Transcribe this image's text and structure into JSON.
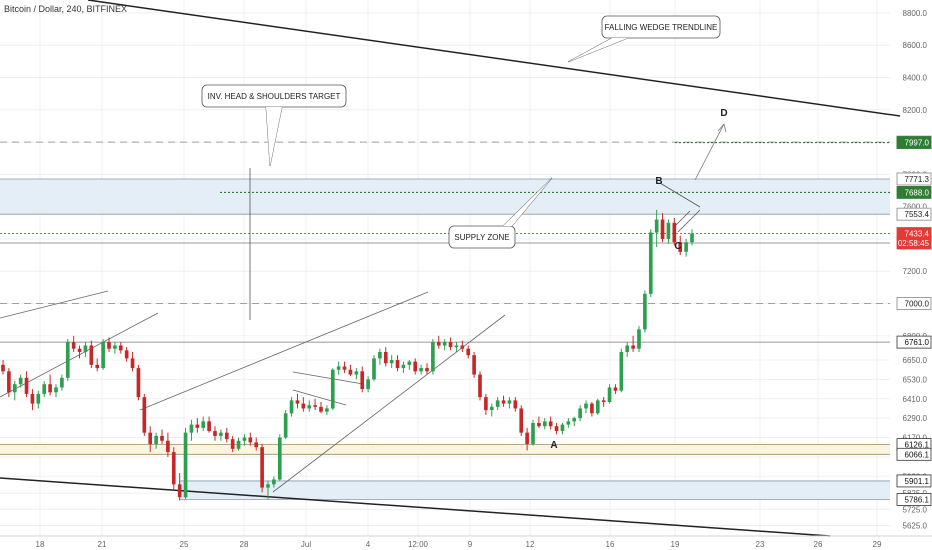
{
  "header": {
    "title": "Bitcoin / Dollar, 240, BITFINEX"
  },
  "colors": {
    "up": "#2e9e4f",
    "down": "#c62828",
    "grid": "#edf0f3",
    "axis_text": "#666666",
    "zone_fill": "#e4eef7",
    "zone_line": "#8a9aa8",
    "target_green": "#2e7d32",
    "current_red": "#e53935",
    "sand_fill": "#fbf4e2",
    "sand_line": "#a08a5a",
    "dark_badge": "#333333"
  },
  "chart_data": {
    "type": "candlestick",
    "y_axis": {
      "min": 5560,
      "max": 8880,
      "ticks": [
        "8800.0",
        "8600.0",
        "8400.0",
        "8200.0",
        "8000.0",
        "7800.0",
        "7600.0",
        "7400.0",
        "7200.0",
        "7000.0",
        "6800.0",
        "6650.0",
        "6530.0",
        "6410.0",
        "6290.0",
        "6170.0",
        "6050.0",
        "5930.0",
        "5825.0",
        "5725.0",
        "5625.0"
      ]
    },
    "x_axis": {
      "labels": [
        "18",
        "21",
        "25",
        "28",
        "Jul",
        "4",
        "12:00",
        "9",
        "12",
        "16",
        "19",
        "23",
        "26",
        "29"
      ]
    },
    "price_badges": [
      {
        "label": "8000.0",
        "value": 8000,
        "style": "light"
      },
      {
        "label": "7997.0",
        "value": 7997,
        "style": "green"
      },
      {
        "label": "7771.3",
        "value": 7771.3,
        "style": "light"
      },
      {
        "label": "7688.0",
        "value": 7688,
        "style": "green"
      },
      {
        "label": "7553.4",
        "value": 7553.4,
        "style": "light"
      },
      {
        "label": "7433.4",
        "value": 7433.4,
        "style": "red"
      },
      {
        "label": "02:58:45",
        "value": 7375,
        "style": "red"
      },
      {
        "label": "7000.0",
        "value": 7000,
        "style": "light"
      },
      {
        "label": "6761.0",
        "value": 6761,
        "style": "dark"
      },
      {
        "label": "6126.1",
        "value": 6126.1,
        "style": "dark"
      },
      {
        "label": "6066.1",
        "value": 6066.1,
        "style": "dark"
      },
      {
        "label": "5901.1",
        "value": 5901.1,
        "style": "dark"
      },
      {
        "label": "5786.1",
        "value": 5786.1,
        "style": "dark"
      }
    ],
    "callouts": [
      {
        "text": "FALLING WEDGE TRENDLINE"
      },
      {
        "text": "INV. HEAD & SHOULDERS TARGET"
      },
      {
        "text": "SUPPLY ZONE"
      }
    ],
    "point_labels": [
      "A",
      "B",
      "C",
      "D"
    ],
    "candles": [
      [
        6620,
        6650,
        6560,
        6580
      ],
      [
        6580,
        6600,
        6420,
        6450
      ],
      [
        6450,
        6520,
        6400,
        6500
      ],
      [
        6500,
        6560,
        6480,
        6540
      ],
      [
        6540,
        6580,
        6420,
        6440
      ],
      [
        6440,
        6470,
        6340,
        6380
      ],
      [
        6380,
        6460,
        6350,
        6440
      ],
      [
        6440,
        6520,
        6420,
        6500
      ],
      [
        6500,
        6560,
        6430,
        6450
      ],
      [
        6450,
        6500,
        6420,
        6480
      ],
      [
        6480,
        6560,
        6460,
        6540
      ],
      [
        6540,
        6780,
        6520,
        6760
      ],
      [
        6760,
        6800,
        6700,
        6720
      ],
      [
        6720,
        6740,
        6660,
        6700
      ],
      [
        6700,
        6760,
        6670,
        6740
      ],
      [
        6740,
        6770,
        6600,
        6620
      ],
      [
        6620,
        6660,
        6580,
        6600
      ],
      [
        6600,
        6780,
        6590,
        6760
      ],
      [
        6760,
        6790,
        6700,
        6720
      ],
      [
        6720,
        6760,
        6690,
        6740
      ],
      [
        6740,
        6760,
        6690,
        6710
      ],
      [
        6710,
        6730,
        6640,
        6660
      ],
      [
        6660,
        6700,
        6580,
        6600
      ],
      [
        6600,
        6620,
        6400,
        6420
      ],
      [
        6420,
        6440,
        6180,
        6200
      ],
      [
        6200,
        6240,
        6080,
        6130
      ],
      [
        6130,
        6200,
        6100,
        6180
      ],
      [
        6180,
        6220,
        6130,
        6150
      ],
      [
        6150,
        6200,
        6050,
        6080
      ],
      [
        6080,
        6110,
        5840,
        5880
      ],
      [
        5880,
        5950,
        5780,
        5800
      ],
      [
        5800,
        6230,
        5790,
        6200
      ],
      [
        6200,
        6280,
        6150,
        6250
      ],
      [
        6250,
        6290,
        6200,
        6230
      ],
      [
        6230,
        6300,
        6210,
        6270
      ],
      [
        6270,
        6300,
        6200,
        6210
      ],
      [
        6210,
        6240,
        6150,
        6180
      ],
      [
        6180,
        6220,
        6150,
        6200
      ],
      [
        6200,
        6230,
        6140,
        6160
      ],
      [
        6160,
        6180,
        6080,
        6100
      ],
      [
        6100,
        6170,
        6090,
        6150
      ],
      [
        6150,
        6190,
        6120,
        6170
      ],
      [
        6170,
        6200,
        6120,
        6140
      ],
      [
        6140,
        6170,
        6090,
        6110
      ],
      [
        6110,
        6130,
        5830,
        5860
      ],
      [
        5860,
        5900,
        5790,
        5880
      ],
      [
        5880,
        5930,
        5860,
        5910
      ],
      [
        5910,
        6190,
        5900,
        6170
      ],
      [
        6170,
        6340,
        6160,
        6320
      ],
      [
        6320,
        6420,
        6300,
        6400
      ],
      [
        6400,
        6440,
        6350,
        6380
      ],
      [
        6380,
        6420,
        6330,
        6350
      ],
      [
        6350,
        6400,
        6330,
        6370
      ],
      [
        6370,
        6410,
        6340,
        6360
      ],
      [
        6360,
        6390,
        6320,
        6330
      ],
      [
        6330,
        6370,
        6310,
        6350
      ],
      [
        6350,
        6600,
        6340,
        6590
      ],
      [
        6590,
        6640,
        6560,
        6610
      ],
      [
        6610,
        6640,
        6570,
        6590
      ],
      [
        6590,
        6620,
        6550,
        6560
      ],
      [
        6560,
        6600,
        6530,
        6580
      ],
      [
        6580,
        6610,
        6450,
        6470
      ],
      [
        6470,
        6550,
        6450,
        6530
      ],
      [
        6530,
        6680,
        6520,
        6660
      ],
      [
        6660,
        6720,
        6620,
        6700
      ],
      [
        6700,
        6730,
        6610,
        6630
      ],
      [
        6630,
        6680,
        6600,
        6650
      ],
      [
        6650,
        6680,
        6580,
        6600
      ],
      [
        6600,
        6640,
        6570,
        6620
      ],
      [
        6620,
        6650,
        6590,
        6640
      ],
      [
        6640,
        6660,
        6560,
        6580
      ],
      [
        6580,
        6620,
        6560,
        6600
      ],
      [
        6600,
        6630,
        6560,
        6580
      ],
      [
        6580,
        6780,
        6560,
        6760
      ],
      [
        6760,
        6800,
        6720,
        6740
      ],
      [
        6740,
        6780,
        6710,
        6760
      ],
      [
        6760,
        6790,
        6710,
        6730
      ],
      [
        6730,
        6760,
        6700,
        6740
      ],
      [
        6740,
        6770,
        6700,
        6720
      ],
      [
        6720,
        6740,
        6660,
        6680
      ],
      [
        6680,
        6700,
        6540,
        6560
      ],
      [
        6560,
        6580,
        6400,
        6420
      ],
      [
        6420,
        6440,
        6310,
        6340
      ],
      [
        6340,
        6380,
        6300,
        6360
      ],
      [
        6360,
        6420,
        6340,
        6400
      ],
      [
        6400,
        6430,
        6360,
        6380
      ],
      [
        6380,
        6420,
        6350,
        6400
      ],
      [
        6400,
        6420,
        6330,
        6350
      ],
      [
        6350,
        6370,
        6180,
        6200
      ],
      [
        6200,
        6230,
        6090,
        6130
      ],
      [
        6130,
        6280,
        6120,
        6260
      ],
      [
        6260,
        6300,
        6230,
        6240
      ],
      [
        6240,
        6290,
        6220,
        6270
      ],
      [
        6270,
        6300,
        6220,
        6240
      ],
      [
        6240,
        6260,
        6190,
        6210
      ],
      [
        6210,
        6260,
        6190,
        6250
      ],
      [
        6250,
        6290,
        6230,
        6270
      ],
      [
        6270,
        6300,
        6240,
        6290
      ],
      [
        6290,
        6370,
        6270,
        6350
      ],
      [
        6350,
        6400,
        6320,
        6380
      ],
      [
        6380,
        6390,
        6300,
        6320
      ],
      [
        6320,
        6410,
        6310,
        6400
      ],
      [
        6400,
        6420,
        6360,
        6390
      ],
      [
        6390,
        6500,
        6380,
        6480
      ],
      [
        6480,
        6500,
        6440,
        6460
      ],
      [
        6460,
        6720,
        6450,
        6700
      ],
      [
        6700,
        6760,
        6670,
        6740
      ],
      [
        6740,
        6800,
        6700,
        6720
      ],
      [
        6720,
        6860,
        6700,
        6840
      ],
      [
        6840,
        7080,
        6820,
        7060
      ],
      [
        7060,
        7460,
        7040,
        7440
      ],
      [
        7440,
        7580,
        7350,
        7520
      ],
      [
        7520,
        7560,
        7380,
        7400
      ],
      [
        7400,
        7520,
        7370,
        7500
      ],
      [
        7500,
        7530,
        7360,
        7380
      ],
      [
        7380,
        7420,
        7300,
        7320
      ],
      [
        7320,
        7400,
        7290,
        7380
      ],
      [
        7380,
        7460,
        7360,
        7433.4
      ]
    ]
  }
}
